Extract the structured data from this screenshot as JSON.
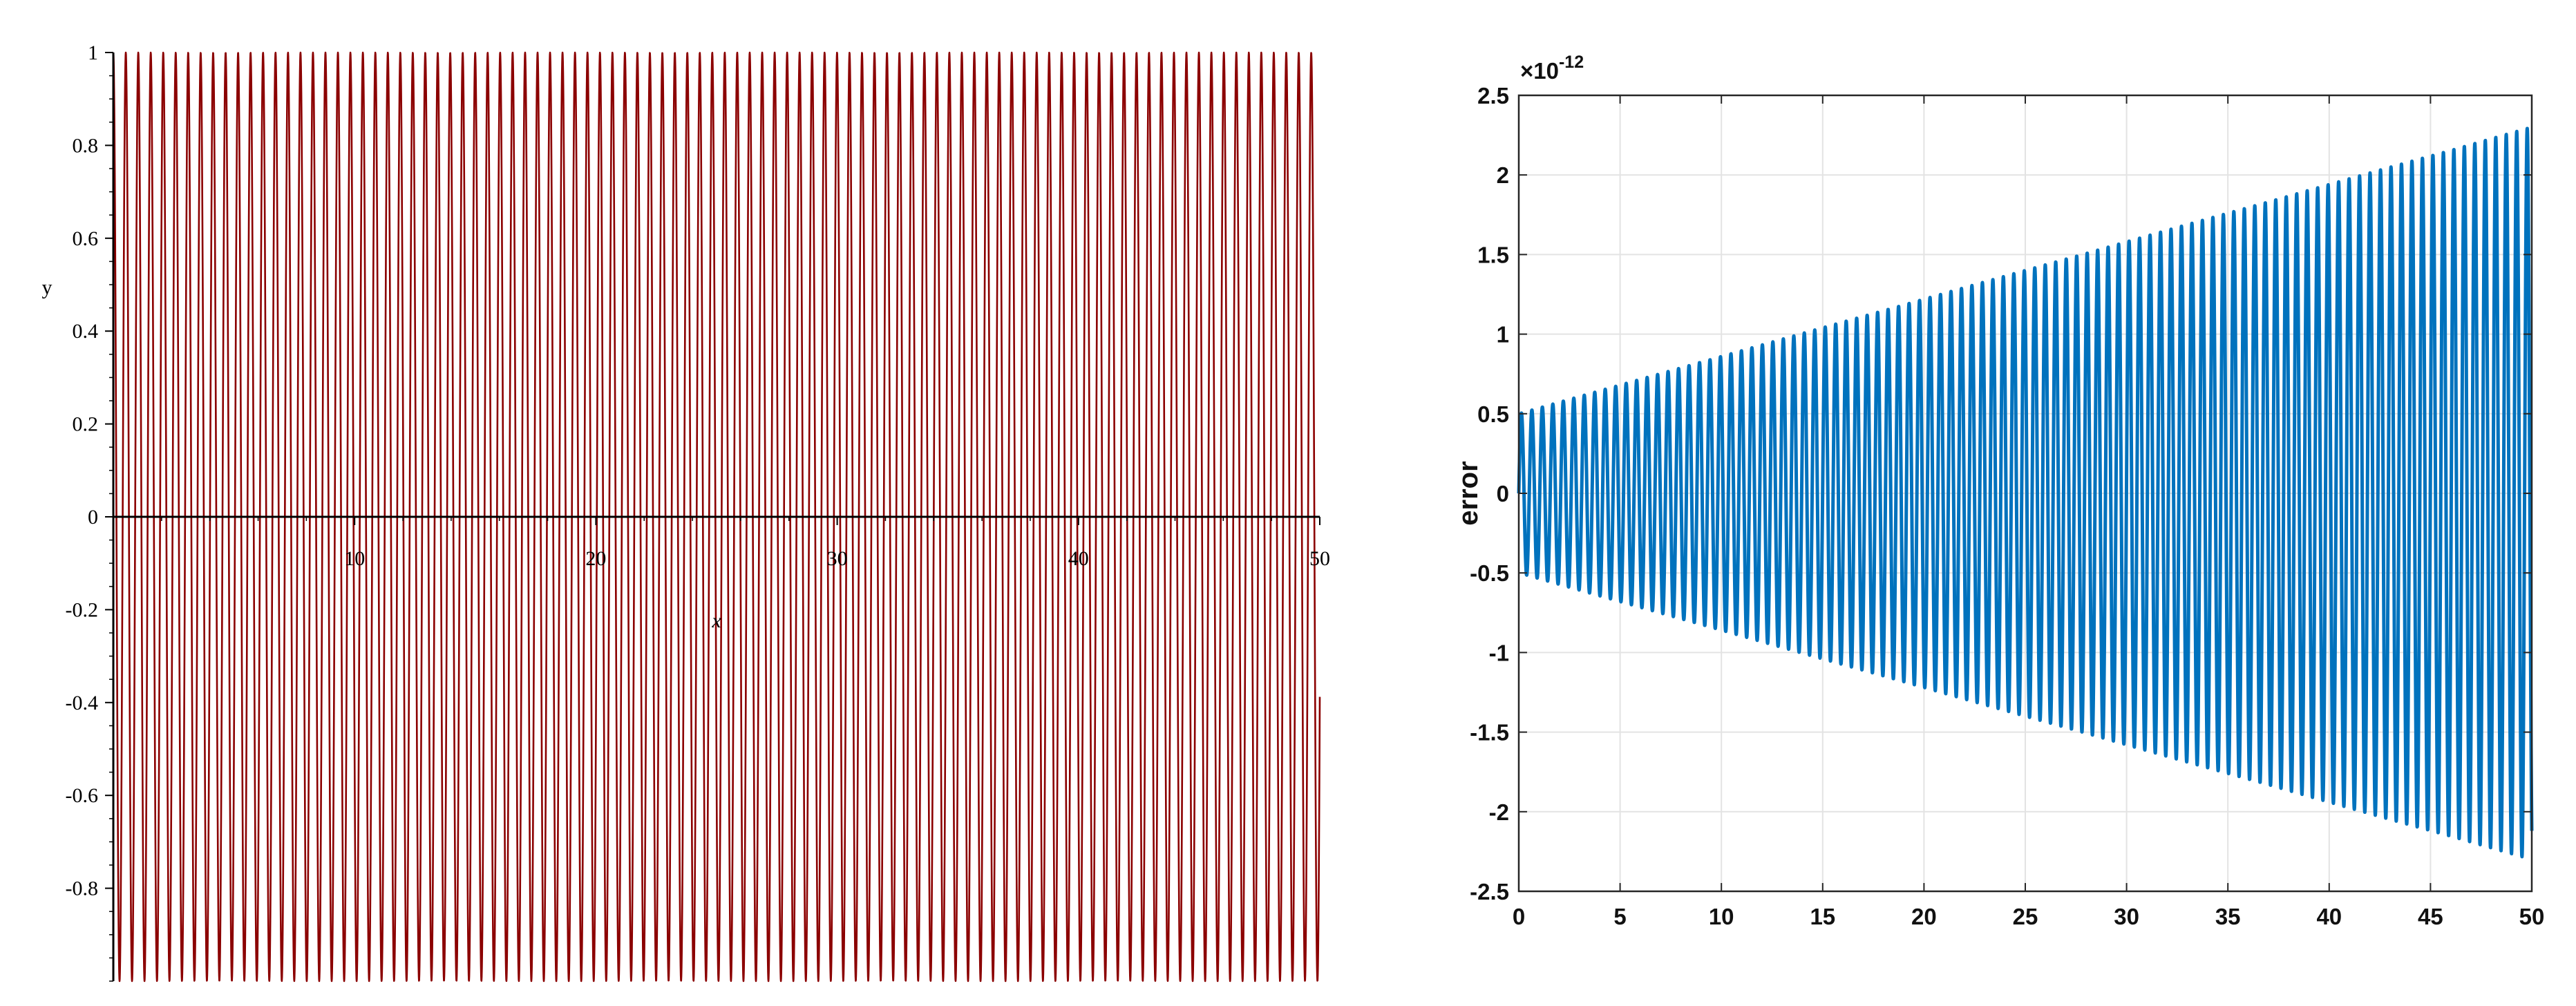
{
  "chart_data": [
    {
      "type": "line",
      "title": "",
      "xlabel": "x",
      "ylabel": "y",
      "xlim": [
        0,
        50
      ],
      "ylim": [
        -1,
        1
      ],
      "x_ticks": [
        10,
        20,
        30,
        40,
        50
      ],
      "x_tick_labels": [
        "10",
        "20",
        "30",
        "40",
        "50"
      ],
      "y_ticks": [
        -0.8,
        -0.6,
        -0.4,
        -0.2,
        0,
        0.2,
        0.4,
        0.6,
        0.8,
        1
      ],
      "y_tick_labels": [
        "-0.8",
        "-0.6",
        "-0.4",
        "-0.2",
        "0",
        "0.2",
        "0.4",
        "0.6",
        "0.8",
        "1"
      ],
      "grid": false,
      "axes_cross_at_zero": true,
      "line_color": "#8b0000",
      "series": [
        {
          "function": "oscillation",
          "angular_frequency": 12.15,
          "amplitude": 1,
          "x_range": [
            0,
            50
          ]
        }
      ]
    },
    {
      "type": "line",
      "title": "",
      "xlabel": "",
      "ylabel": "error",
      "y_scale_label": "×10",
      "y_scale_exponent": "-12",
      "xlim": [
        0,
        50
      ],
      "ylim": [
        -2.5,
        2.5
      ],
      "x_ticks": [
        0,
        5,
        10,
        15,
        20,
        25,
        30,
        35,
        40,
        45,
        50
      ],
      "x_tick_labels": [
        "0",
        "5",
        "10",
        "15",
        "20",
        "25",
        "30",
        "35",
        "40",
        "45",
        "50"
      ],
      "y_ticks": [
        -2.5,
        -2,
        -1.5,
        -1,
        -0.5,
        0,
        0.5,
        1,
        1.5,
        2,
        2.5
      ],
      "y_tick_labels": [
        "-2.5",
        "-2",
        "-1.5",
        "-1",
        "-0.5",
        "0",
        "0.5",
        "1",
        "1.5",
        "2",
        "2.5"
      ],
      "grid": true,
      "box": true,
      "line_color": "#0072bd",
      "series": [
        {
          "function": "growing-oscillation",
          "angular_frequency": 12.15,
          "envelope_start": 0.5,
          "envelope_end": 2.3,
          "x_range": [
            0,
            50
          ]
        }
      ]
    }
  ]
}
